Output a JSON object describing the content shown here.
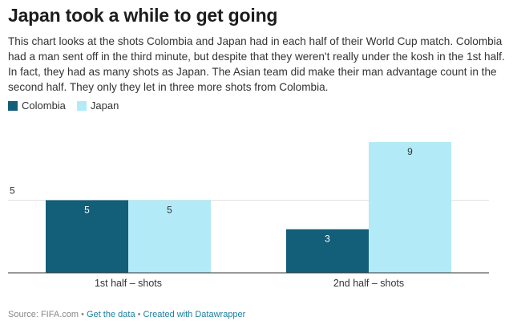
{
  "header": {
    "title": "Japan took a while to get going",
    "description": "This chart looks at the shots Colombia and Japan had in each half of their World Cup match. Colombia had a man sent off in the third minute, but despite that they weren't really under the kosh in the 1st half. In fact, they had as many shots as Japan. The Asian team did make their man advantage count in the second half. They only they let in three more shots from Colombia."
  },
  "legend": {
    "items": [
      {
        "label": "Colombia",
        "color": "#135e78"
      },
      {
        "label": "Japan",
        "color": "#b2ebf7"
      }
    ]
  },
  "chart_data": {
    "type": "bar",
    "categories": [
      "1st half – shots",
      "2nd half – shots"
    ],
    "series": [
      {
        "name": "Colombia",
        "values": [
          5,
          3
        ],
        "color": "#135e78"
      },
      {
        "name": "Japan",
        "values": [
          5,
          9
        ],
        "color": "#b2ebf7"
      }
    ],
    "y_ticks": [
      5
    ],
    "ylim": [
      0,
      9.5
    ],
    "grid": true,
    "legend_position": "top-left"
  },
  "footer": {
    "source": "Source: FIFA.com",
    "get_data": "Get the data",
    "created_with": "Created with Datawrapper",
    "separator": "•"
  }
}
